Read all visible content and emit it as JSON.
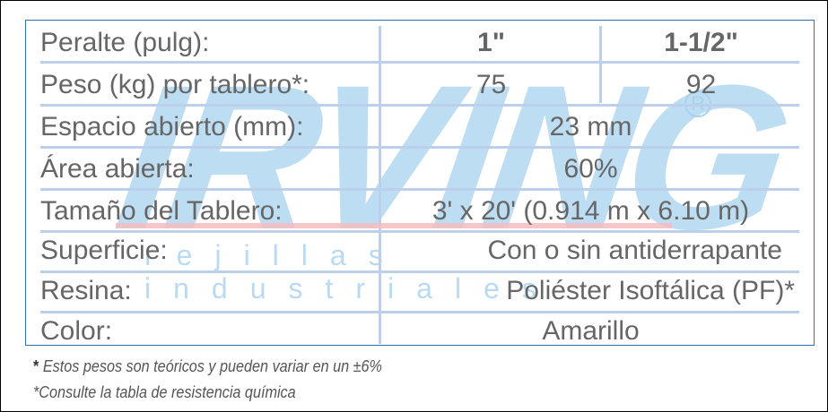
{
  "watermark": {
    "logo": "IRVING",
    "registered": "R",
    "tagline": "rejillas industriales"
  },
  "colors": {
    "border": "#2f6fb3",
    "grid": "#bcd0ec",
    "watermark": "#a8d2ee",
    "text": "#666666"
  },
  "header": {
    "label": "Peralte (pulg):",
    "col1": "1\"",
    "col2": "1-1/2\""
  },
  "rows": [
    {
      "label": "Peso (kg)  por tablero*:",
      "col1": "75",
      "col2": "92"
    },
    {
      "label": "Espacio abierto (mm):",
      "value": "23 mm"
    },
    {
      "label": "Área abierta:",
      "value": "60%"
    },
    {
      "label": "Tamaño del Tablero:",
      "value": "3' x 20' (0.914 m x 6.10 m)"
    },
    {
      "label": "Superficie:",
      "value": "Con o sin antiderrapante"
    },
    {
      "label": "Resina:",
      "value": "Poliéster Isoftálica (PF)*"
    },
    {
      "label": "Color:",
      "value": "Amarillo"
    }
  ],
  "notes": [
    {
      "mark": "*",
      "text": " Estos pesos son teóricos y pueden variar en un ±6%"
    },
    {
      "text": "*Consulte la tabla de resistencia química"
    }
  ]
}
